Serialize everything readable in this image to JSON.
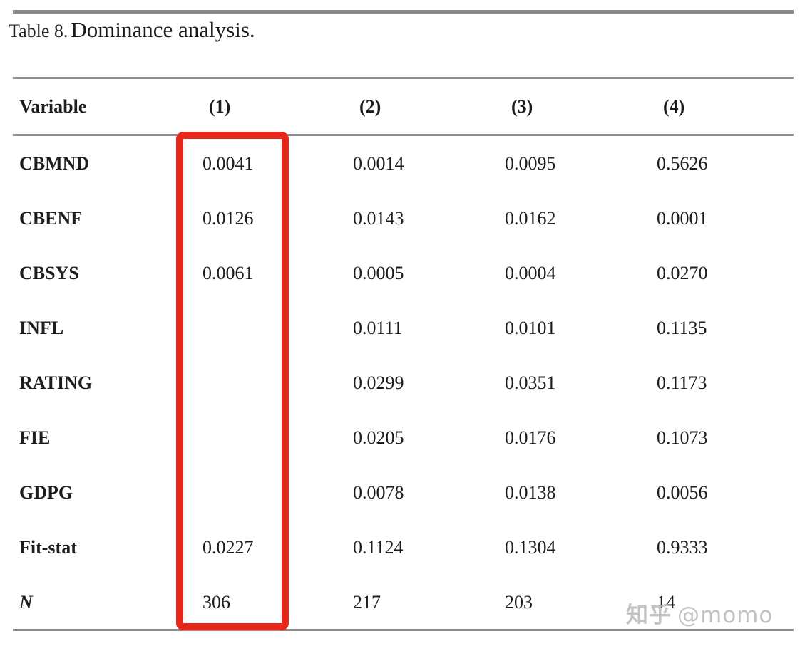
{
  "caption": {
    "prefix": "Table 8.",
    "main": "Dominance analysis."
  },
  "table": {
    "columns": [
      "Variable",
      "(1)",
      "(2)",
      "(3)",
      "(4)"
    ],
    "rows": [
      {
        "label": "CBMND",
        "label_style": "bold",
        "values": [
          "0.0041",
          "0.0014",
          "0.0095",
          "0.5626"
        ]
      },
      {
        "label": "CBENF",
        "label_style": "bold",
        "values": [
          "0.0126",
          "0.0143",
          "0.0162",
          "0.0001"
        ]
      },
      {
        "label": "CBSYS",
        "label_style": "bold",
        "values": [
          "0.0061",
          "0.0005",
          "0.0004",
          "0.0270"
        ]
      },
      {
        "label": "INFL",
        "label_style": "bold",
        "values": [
          "",
          "0.0111",
          "0.0101",
          "0.1135"
        ]
      },
      {
        "label": "RATING",
        "label_style": "bold",
        "values": [
          "",
          "0.0299",
          "0.0351",
          "0.1173"
        ]
      },
      {
        "label": "FIE",
        "label_style": "bold",
        "values": [
          "",
          "0.0205",
          "0.0176",
          "0.1073"
        ]
      },
      {
        "label": "GDPG",
        "label_style": "bold",
        "values": [
          "",
          "0.0078",
          "0.0138",
          "0.0056"
        ]
      },
      {
        "label": "Fit-stat",
        "label_style": "bold",
        "values": [
          "0.0227",
          "0.1124",
          "0.1304",
          "0.9333"
        ]
      },
      {
        "label": "N",
        "label_style": "bold-italic",
        "values": [
          "306",
          "217",
          "203",
          "14"
        ]
      }
    ]
  },
  "annotation": {
    "shape": "rectangle",
    "color": "#e8261a",
    "highlighted_column": "(1)"
  },
  "watermark": {
    "logo": "知乎",
    "handle": "@momo",
    "color": "#b5b5b5"
  }
}
